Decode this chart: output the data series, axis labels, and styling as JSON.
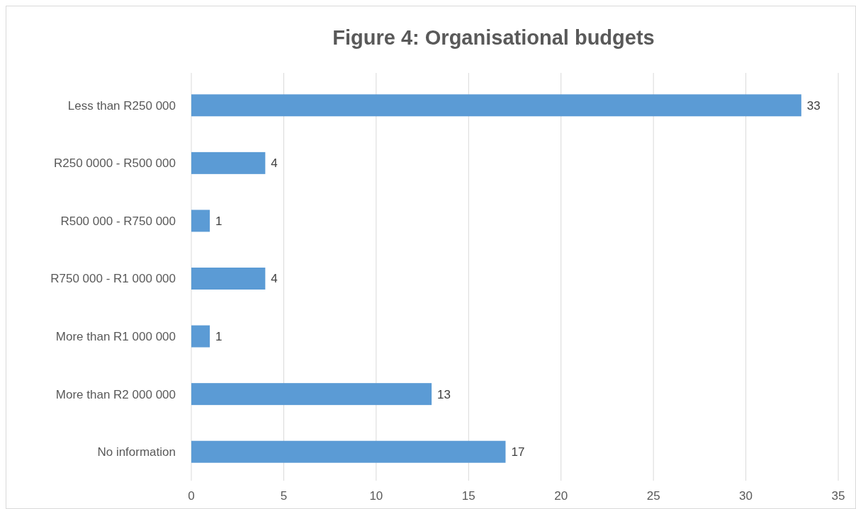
{
  "chart_data": {
    "type": "bar",
    "orientation": "horizontal",
    "title": "Figure 4: Organisational budgets",
    "categories": [
      "Less than R250 000",
      "R250 0000 - R500 000",
      "R500 000 - R750 000",
      "R750 000 - R1 000 000",
      "More than R1 000 000",
      "More than R2 000 000",
      "No information"
    ],
    "values": [
      33,
      4,
      1,
      4,
      1,
      13,
      17
    ],
    "color": "#5b9bd5",
    "xlim": [
      0,
      35
    ],
    "xticks": [
      0,
      5,
      10,
      15,
      20,
      25,
      30,
      35
    ],
    "grid": "x",
    "data_labels": true
  }
}
